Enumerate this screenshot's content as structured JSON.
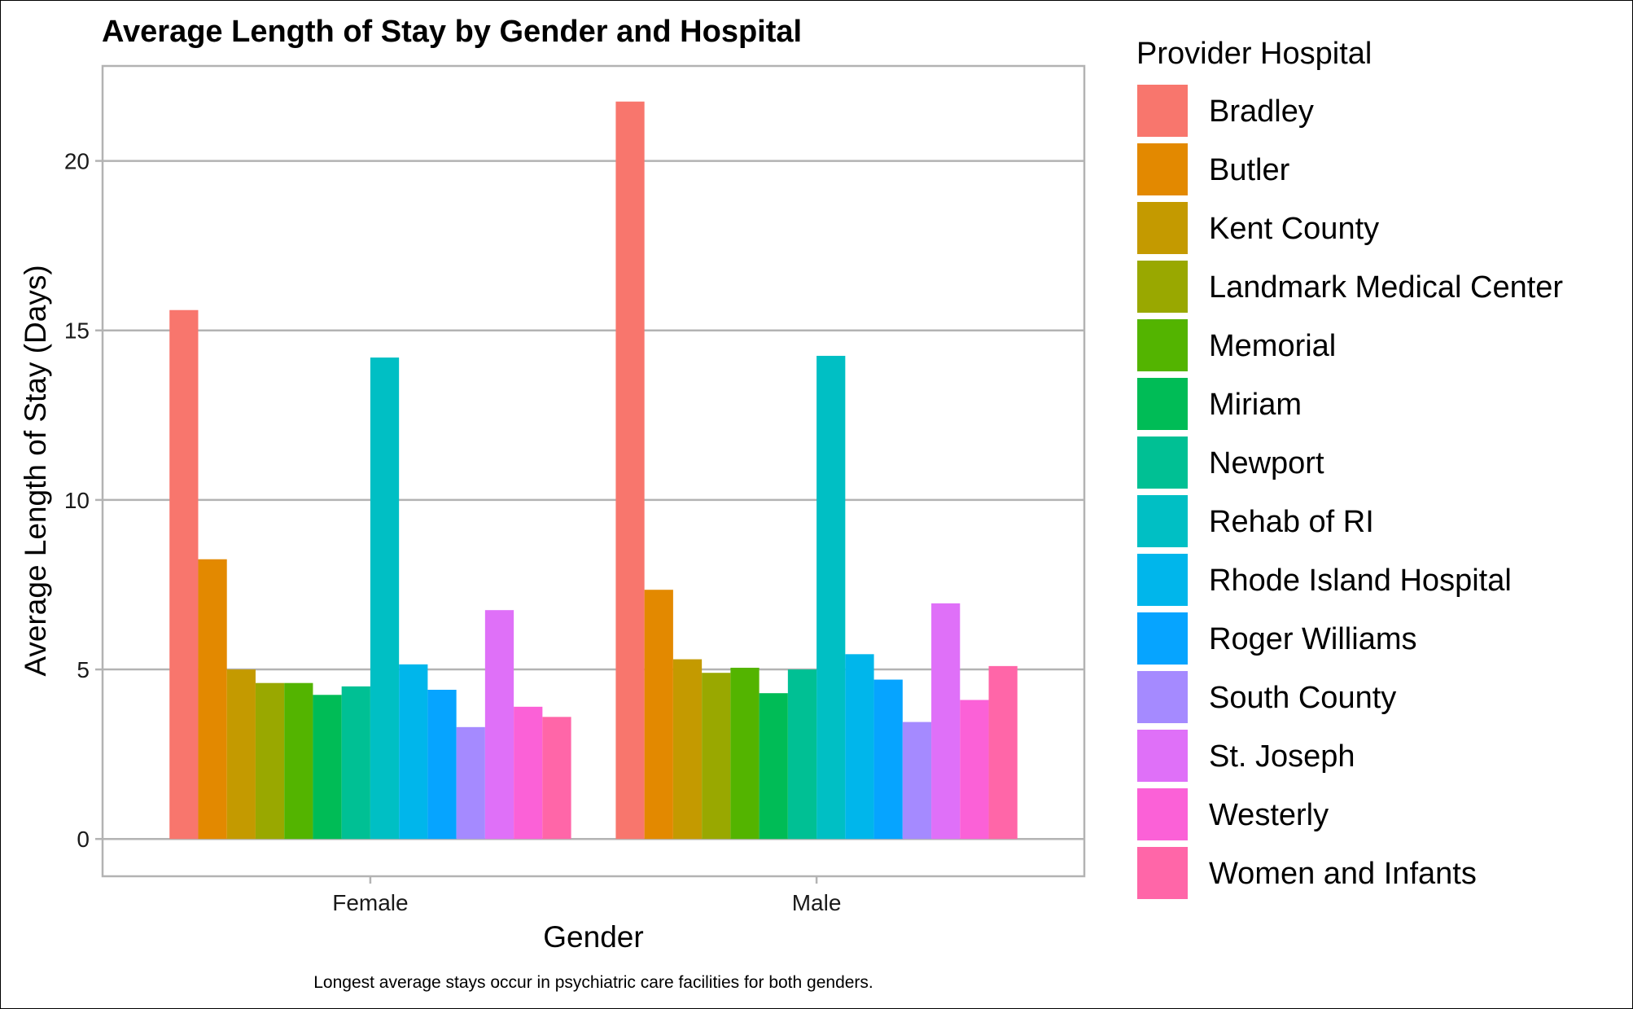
{
  "chart_data": {
    "type": "bar",
    "title": "Average Length of Stay by Gender and Hospital",
    "xlabel": "Gender",
    "ylabel": "Average Length of Stay (Days)",
    "caption": "Longest average stays occur in psychiatric care facilities for both genders.",
    "categories": [
      "Female",
      "Male"
    ],
    "ylim": [
      -1.1,
      22.8
    ],
    "yticks": [
      0,
      5,
      10,
      15,
      20
    ],
    "grid": true,
    "legend": {
      "title": "Provider Hospital",
      "position": "right"
    },
    "series": [
      {
        "name": "Bradley",
        "color": "#F8766D",
        "values": [
          15.6,
          21.75
        ]
      },
      {
        "name": "Butler",
        "color": "#E38900",
        "values": [
          8.25,
          7.35
        ]
      },
      {
        "name": "Kent County",
        "color": "#C49A00",
        "values": [
          5.0,
          5.3
        ]
      },
      {
        "name": "Landmark Medical Center",
        "color": "#99A800",
        "values": [
          4.6,
          4.9
        ]
      },
      {
        "name": "Memorial",
        "color": "#53B400",
        "values": [
          4.6,
          5.05
        ]
      },
      {
        "name": "Miriam",
        "color": "#00BC56",
        "values": [
          4.25,
          4.3
        ]
      },
      {
        "name": "Newport",
        "color": "#00C094",
        "values": [
          4.5,
          5.0
        ]
      },
      {
        "name": "Rehab of RI",
        "color": "#00BFC4",
        "values": [
          14.2,
          14.25
        ]
      },
      {
        "name": "Rhode Island Hospital",
        "color": "#00B6EB",
        "values": [
          5.15,
          5.45
        ]
      },
      {
        "name": "Roger Williams",
        "color": "#06A4FF",
        "values": [
          4.4,
          4.7
        ]
      },
      {
        "name": "South County",
        "color": "#A58AFF",
        "values": [
          3.3,
          3.45
        ]
      },
      {
        "name": "St. Joseph",
        "color": "#DF70F8",
        "values": [
          6.75,
          6.95
        ]
      },
      {
        "name": "Westerly",
        "color": "#FB61D7",
        "values": [
          3.9,
          4.1
        ]
      },
      {
        "name": "Women and Infants",
        "color": "#FF66A8",
        "values": [
          3.6,
          5.1
        ]
      }
    ]
  }
}
